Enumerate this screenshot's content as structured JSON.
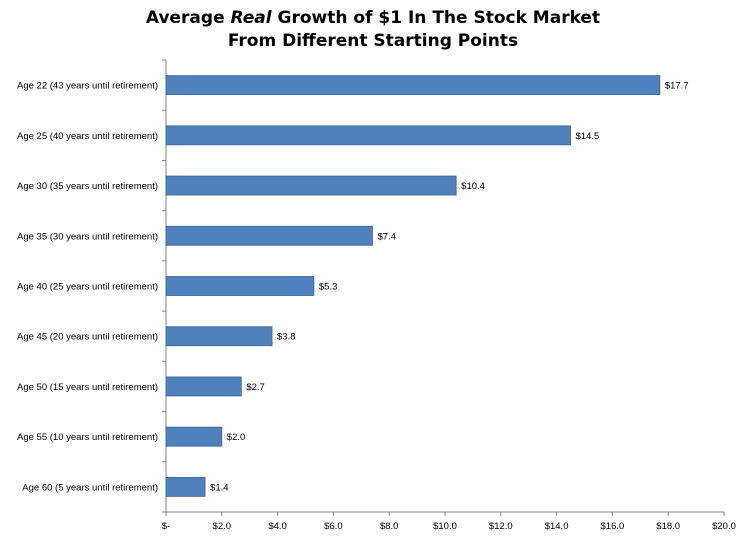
{
  "chart_data": {
    "type": "bar",
    "orientation": "horizontal",
    "title": {
      "pre": "Average ",
      "emphasis": "Real",
      "post": " Growth of $1 In The Stock Market",
      "line2": "From Different Starting Points"
    },
    "categories": [
      "Age 22 (43 years until retirement)",
      "Age 25 (40 years until retirement)",
      "Age 30 (35 years until retirement)",
      "Age 35 (30 years until retirement)",
      "Age 40 (25 years until retirement)",
      "Age 45 (20 years until retirement)",
      "Age 50 (15 years until retirement)",
      "Age 55 (10 years until retirement)",
      "Age 60 (5 years until retirement)"
    ],
    "values": [
      17.7,
      14.5,
      10.4,
      7.4,
      5.3,
      3.8,
      2.7,
      2.0,
      1.4
    ],
    "data_labels": [
      "$17.7",
      "$14.5",
      "$10.4",
      "$7.4",
      "$5.3",
      "$3.8",
      "$2.7",
      "$2.0",
      "$1.4"
    ],
    "xlim": [
      0,
      20
    ],
    "x_ticks": [
      0,
      2,
      4,
      6,
      8,
      10,
      12,
      14,
      16,
      18,
      20
    ],
    "x_tick_labels": [
      "$-",
      "$2.0",
      "$4.0",
      "$6.0",
      "$8.0",
      "$10.0",
      "$12.0",
      "$14.0",
      "$16.0",
      "$18.0",
      "$20.0"
    ],
    "grid": false,
    "legend": "none",
    "bar_color": "#4f81bd",
    "bar_edge_color": "#3a6495"
  }
}
